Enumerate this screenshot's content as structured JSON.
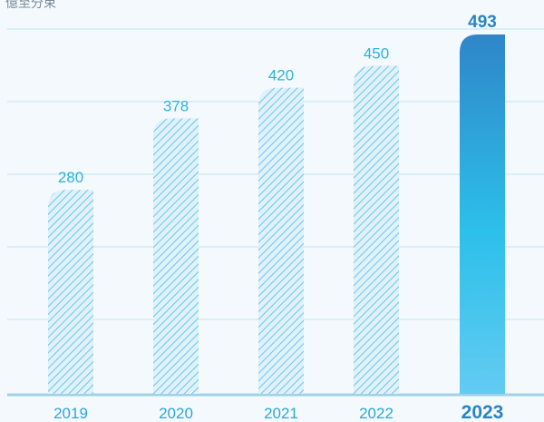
{
  "chart_data": {
    "type": "bar",
    "title": "",
    "unit_label": "億至分束",
    "categories": [
      "2019",
      "2020",
      "2021",
      "2022",
      "2023"
    ],
    "values": [
      280,
      378,
      420,
      450,
      493
    ],
    "ylim": [
      0,
      493
    ],
    "grid": true,
    "highlight_index": 4,
    "colors": {
      "grid": "#bfe3f3",
      "baseline": "#9fd1e8",
      "hatch": "#6ec6e8",
      "hatch_bg": "#dff1fa",
      "label": "#2bb3da",
      "highlight_top": "#2f86c9",
      "highlight_mid": "#2cc0ea",
      "highlight_bottom": "#63cbf2",
      "highlight_label": "#2a84c4",
      "axis_text": "#2ba7d6"
    }
  }
}
